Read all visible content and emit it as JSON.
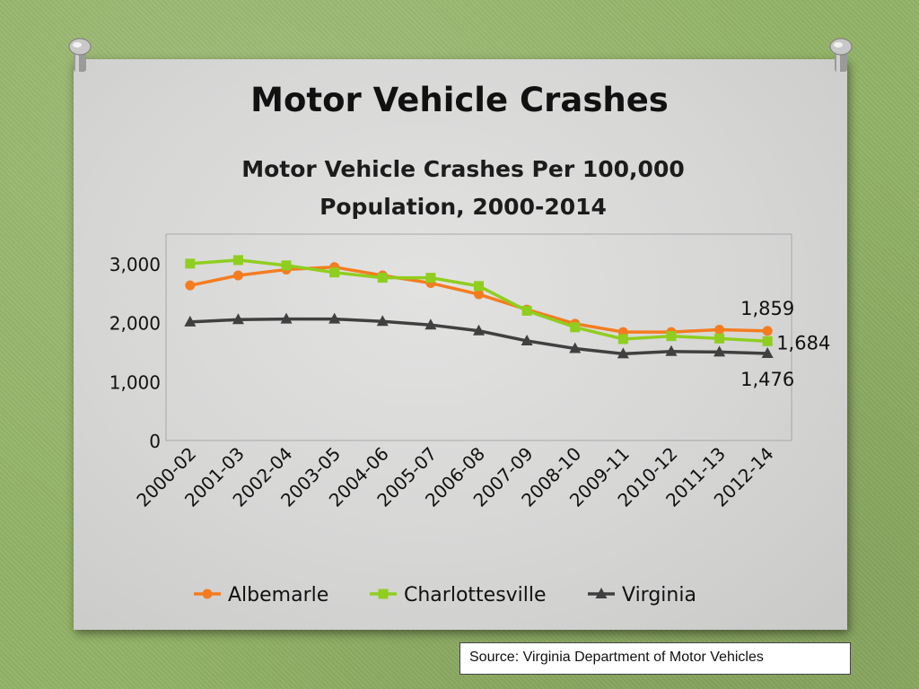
{
  "slide": {
    "title": "Motor Vehicle Crashes",
    "source": "Source: Virginia Department of Motor Vehicles"
  },
  "chart_data": {
    "type": "line",
    "title_lines": [
      "Motor Vehicle Crashes Per 100,000",
      "Population, 2000-2014"
    ],
    "xlabel": "",
    "ylabel": "",
    "categories": [
      "2000-02",
      "2001-03",
      "2002-04",
      "2003-05",
      "2004-06",
      "2005-07",
      "2006-08",
      "2007-09",
      "2008-10",
      "2009-11",
      "2010-12",
      "2011-13",
      "2012-14"
    ],
    "ylim": [
      0,
      3500
    ],
    "yticks": [
      0,
      1000,
      2000,
      3000
    ],
    "ytick_labels": [
      "0",
      "1,000",
      "2,000",
      "3,000"
    ],
    "grid": false,
    "legend_position": "bottom",
    "series": [
      {
        "name": "Albemarle",
        "color": "#f47c20",
        "marker": "circle",
        "values": [
          2630,
          2800,
          2900,
          2940,
          2800,
          2670,
          2480,
          2220,
          1980,
          1840,
          1840,
          1880,
          1859
        ],
        "end_label": "1,859"
      },
      {
        "name": "Charlottesville",
        "color": "#8fce1f",
        "marker": "square",
        "values": [
          3000,
          3060,
          2970,
          2850,
          2760,
          2760,
          2620,
          2200,
          1920,
          1720,
          1770,
          1730,
          1684
        ],
        "end_label": "1,684"
      },
      {
        "name": "Virginia",
        "color": "#404040",
        "marker": "triangle",
        "values": [
          2010,
          2050,
          2060,
          2060,
          2020,
          1960,
          1860,
          1690,
          1560,
          1470,
          1510,
          1500,
          1476
        ],
        "end_label": "1,476"
      }
    ]
  }
}
